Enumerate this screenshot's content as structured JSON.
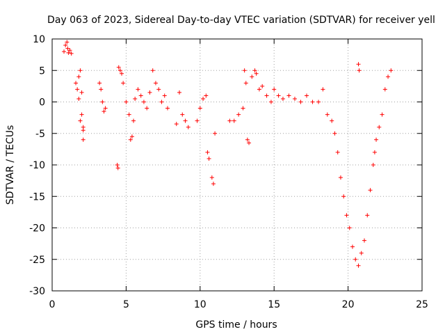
{
  "chart_data": {
    "type": "scatter",
    "title": "Day 063 of 2023, Sidereal Day-to-day VTEC variation (SDTVAR) for receiver yell",
    "xlabel": "GPS time / hours",
    "ylabel": "SDTVAR / TECUs",
    "xlim": [
      0,
      25
    ],
    "ylim": [
      -30,
      10
    ],
    "xticks": [
      0,
      5,
      10,
      15,
      20,
      25
    ],
    "yticks": [
      -30,
      -25,
      -20,
      -15,
      -10,
      -5,
      0,
      5,
      10
    ],
    "grid": true,
    "marker": "+",
    "color": "#ff0000",
    "series": [
      {
        "name": "SDTVAR",
        "x": [
          0.8,
          0.9,
          1.0,
          1.05,
          1.1,
          1.2,
          1.3,
          1.6,
          1.7,
          1.8,
          1.9,
          2.0,
          2.1,
          1.8,
          2.0,
          2.1,
          1.9,
          2.1,
          3.2,
          3.3,
          3.4,
          3.5,
          3.6,
          4.4,
          4.45,
          4.5,
          4.6,
          4.7,
          4.8,
          5.0,
          5.2,
          5.3,
          5.4,
          5.5,
          5.6,
          5.8,
          6.0,
          6.2,
          6.4,
          6.6,
          6.8,
          7.0,
          7.2,
          7.4,
          7.6,
          7.8,
          8.4,
          8.6,
          8.8,
          9.0,
          9.2,
          9.8,
          10.0,
          10.2,
          10.4,
          10.5,
          10.6,
          10.8,
          10.9,
          11.0,
          12.0,
          12.3,
          12.6,
          12.9,
          13.0,
          13.1,
          13.2,
          13.3,
          13.5,
          13.7,
          13.8,
          14.0,
          14.2,
          14.5,
          14.8,
          15.0,
          15.3,
          15.6,
          16.0,
          16.4,
          16.8,
          17.2,
          17.6,
          18.0,
          18.3,
          18.6,
          18.9,
          19.1,
          19.3,
          19.5,
          19.7,
          19.9,
          20.1,
          20.3,
          20.5,
          20.7,
          20.9,
          21.1,
          21.3,
          21.5,
          21.7,
          21.9,
          22.1,
          22.3,
          22.5,
          22.7,
          22.9,
          20.7,
          20.75,
          21.8
        ],
        "y": [
          8,
          9,
          9.5,
          8.5,
          7.8,
          8.2,
          7.7,
          3,
          2,
          4,
          5,
          -2,
          -4,
          0.5,
          1.5,
          -6,
          -3,
          -4.5,
          3,
          2,
          0,
          -1.5,
          -1,
          -10,
          -10.5,
          5.5,
          5,
          4.5,
          3,
          0,
          -2,
          -6,
          -5.5,
          -3,
          0.5,
          2,
          1,
          0,
          -1,
          1.5,
          5,
          3,
          2,
          0,
          1,
          -1,
          -3.5,
          1.5,
          -2,
          -3,
          -4,
          -3,
          -1,
          0.5,
          1,
          -8,
          -9,
          -12,
          -13,
          -5,
          -3,
          -3,
          -2,
          -1,
          5,
          3,
          -6,
          -6.5,
          4,
          5,
          4.5,
          2,
          2.5,
          1,
          0,
          2,
          1,
          0.5,
          1,
          0.5,
          0,
          1,
          0,
          0,
          2,
          -2,
          -3,
          -5,
          -8,
          -12,
          -15,
          -18,
          -20,
          -23,
          -25,
          -26,
          -24,
          -22,
          -18,
          -14,
          -10,
          -6,
          -4,
          -2,
          2,
          4,
          5,
          6,
          5,
          -8
        ]
      }
    ]
  }
}
